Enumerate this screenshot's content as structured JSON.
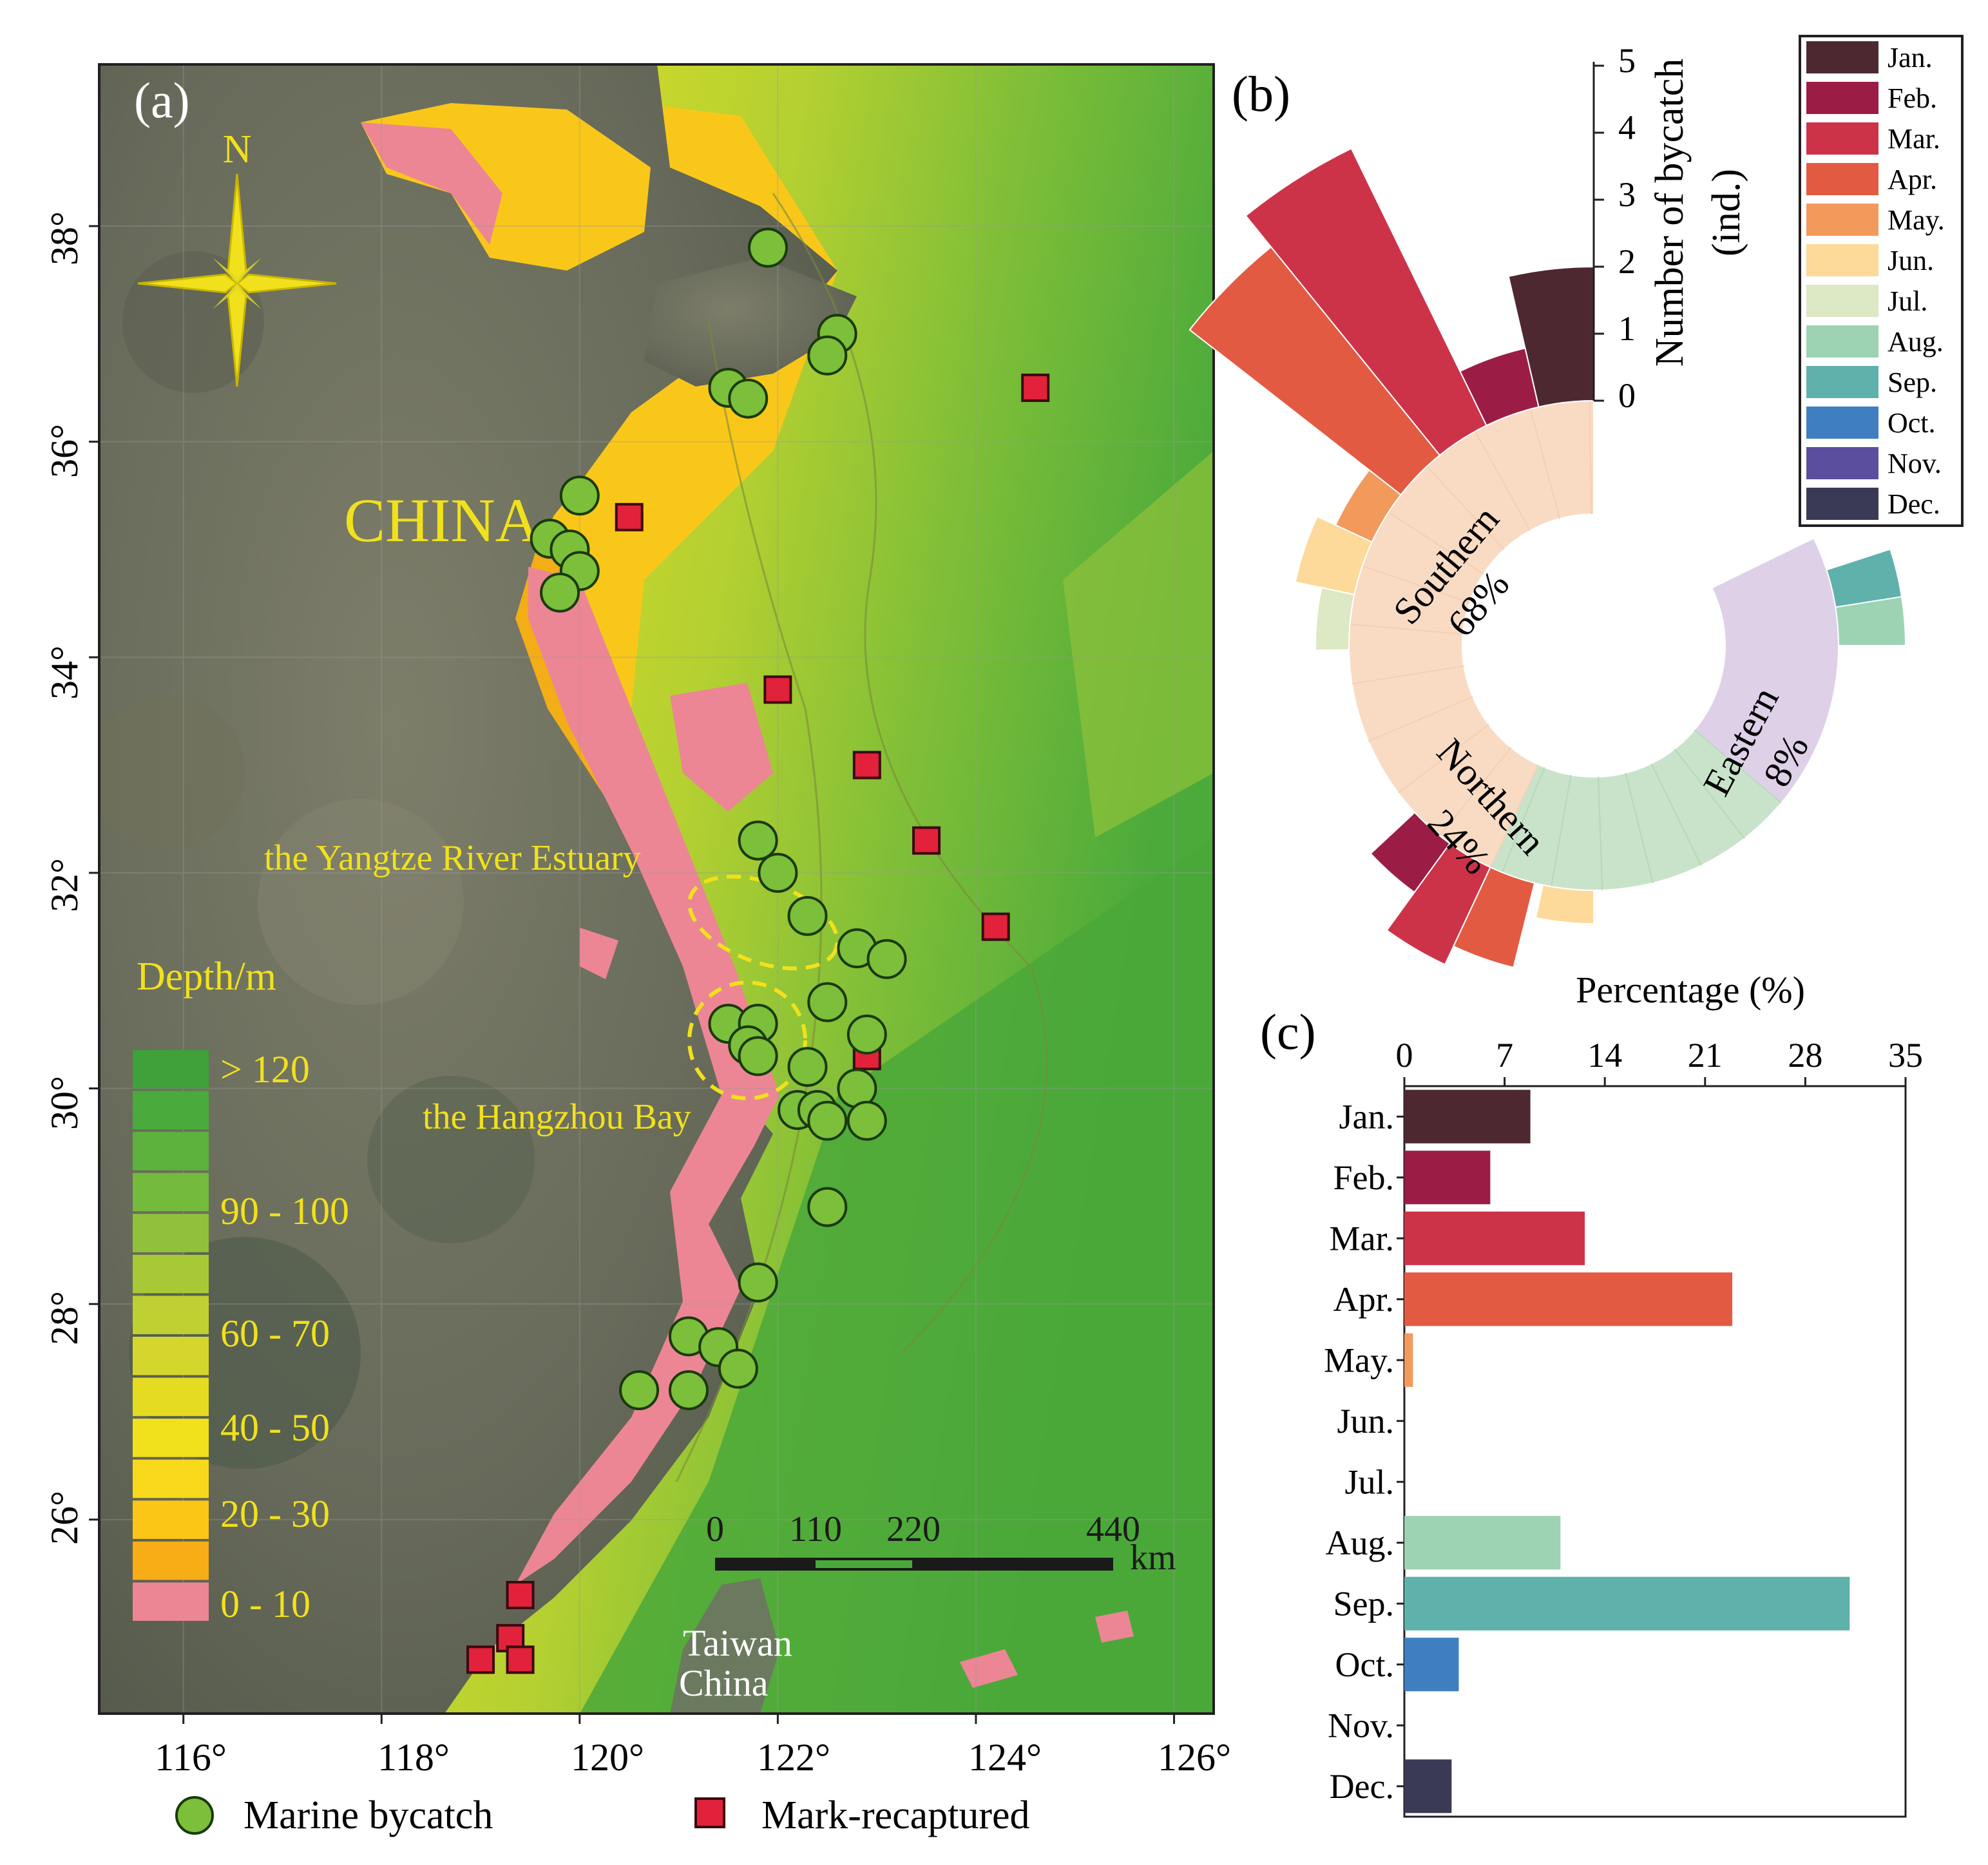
{
  "panels": {
    "a": "(a)",
    "b": "(b)",
    "c": "(c)"
  },
  "map": {
    "compass_label": "N",
    "country_label": "CHINA",
    "yangtze_label": "the Yangtze River Estuary",
    "hangzhou_label": "the Hangzhou Bay",
    "taiwan_label_1": "Taiwan",
    "taiwan_label_2": "China",
    "lon_ticks": [
      "116°",
      "118°",
      "120°",
      "122°",
      "124°",
      "126°"
    ],
    "lat_ticks": [
      "38°",
      "36°",
      "34°",
      "32°",
      "30°",
      "28°",
      "26°"
    ],
    "depth_title": "Depth/m",
    "depth_labels": [
      "> 120",
      "90 - 100",
      "60 - 70",
      "40 - 50",
      "20 - 30",
      "0 - 10"
    ],
    "depth_colors": [
      "#3ea13a",
      "#4aaa3c",
      "#5cb23d",
      "#74ba3c",
      "#8fc23a",
      "#a8c936",
      "#bfd033",
      "#d4d62e",
      "#e5dc22",
      "#f1e11c",
      "#f8d81a",
      "#fbc615",
      "#f7ad16",
      "#ec8694"
    ],
    "scale_labels": [
      "0",
      "110",
      "220",
      "440"
    ],
    "scale_unit": "km",
    "bycatch": [
      [
        121.9,
        37.8
      ],
      [
        122.6,
        37.0
      ],
      [
        122.5,
        36.8
      ],
      [
        121.5,
        36.5
      ],
      [
        121.7,
        36.4
      ],
      [
        120.0,
        35.5
      ],
      [
        119.7,
        35.1
      ],
      [
        119.9,
        35.0
      ],
      [
        120.0,
        34.8
      ],
      [
        119.8,
        34.6
      ],
      [
        121.8,
        32.3
      ],
      [
        122.0,
        32.0
      ],
      [
        122.3,
        31.6
      ],
      [
        122.8,
        31.3
      ],
      [
        123.1,
        31.2
      ],
      [
        122.5,
        30.8
      ],
      [
        121.5,
        30.6
      ],
      [
        121.8,
        30.6
      ],
      [
        121.7,
        30.4
      ],
      [
        121.8,
        30.3
      ],
      [
        122.9,
        30.5
      ],
      [
        122.3,
        30.2
      ],
      [
        122.8,
        30.0
      ],
      [
        122.2,
        29.8
      ],
      [
        122.4,
        29.8
      ],
      [
        122.5,
        29.7
      ],
      [
        122.9,
        29.7
      ],
      [
        122.5,
        28.9
      ],
      [
        121.8,
        28.2
      ],
      [
        121.1,
        27.7
      ],
      [
        121.4,
        27.6
      ],
      [
        121.6,
        27.4
      ],
      [
        120.6,
        27.2
      ],
      [
        121.1,
        27.2
      ]
    ],
    "recaptured": [
      [
        124.6,
        36.5
      ],
      [
        120.5,
        35.3
      ],
      [
        122.0,
        33.7
      ],
      [
        122.9,
        33.0
      ],
      [
        123.5,
        32.3
      ],
      [
        124.2,
        31.5
      ],
      [
        122.9,
        30.3
      ],
      [
        119.4,
        25.3
      ],
      [
        119.3,
        24.9
      ],
      [
        119.0,
        24.7
      ],
      [
        119.4,
        24.7
      ]
    ]
  },
  "legend_bottom": {
    "bycatch_label": "Marine bycatch",
    "recaptured_label": "Mark-recaptured"
  },
  "month_legend": {
    "labels": [
      "Jan.",
      "Feb.",
      "Mar.",
      "Apr.",
      "May.",
      "Jun.",
      "Jul.",
      "Aug.",
      "Sep.",
      "Oct.",
      "Nov.",
      "Dec."
    ],
    "colors": [
      "#4e2830",
      "#9b1d45",
      "#cc3349",
      "#e35a43",
      "#f29a5c",
      "#fdd99a",
      "#dde8c4",
      "#9dd3b3",
      "#5fb1ab",
      "#3f7fc1",
      "#5c4e9e",
      "#3b3a55"
    ]
  },
  "radial_chart": {
    "radial_axis_title_1": "Number of bycatch",
    "radial_axis_title_2": "(ind.)",
    "radial_ticks": [
      "0",
      "1",
      "2",
      "3",
      "4",
      "5"
    ],
    "regions": [
      {
        "name": "Southern",
        "percent": "68%",
        "color": "#f9dbc4"
      },
      {
        "name": "Northern",
        "percent": "24%",
        "color": "#c8e3c9"
      },
      {
        "name": "Eastern",
        "percent": "8%",
        "color": "#ddd0e7"
      }
    ]
  },
  "chart_data": {
    "type": "bar",
    "orientation": "horizontal",
    "categories": [
      "Jan.",
      "Feb.",
      "Mar.",
      "Apr.",
      "May.",
      "Jun.",
      "Jul.",
      "Aug.",
      "Sep.",
      "Oct.",
      "Nov.",
      "Dec."
    ],
    "values": [
      8.8,
      6.0,
      12.6,
      22.9,
      0.6,
      0,
      0,
      10.9,
      31.1,
      3.8,
      0,
      3.3
    ],
    "xlabel": "Percentage (%)",
    "xlim": [
      0,
      35
    ],
    "xticks": [
      "0",
      "7",
      "14",
      "21",
      "28",
      "35"
    ],
    "grid": false
  }
}
